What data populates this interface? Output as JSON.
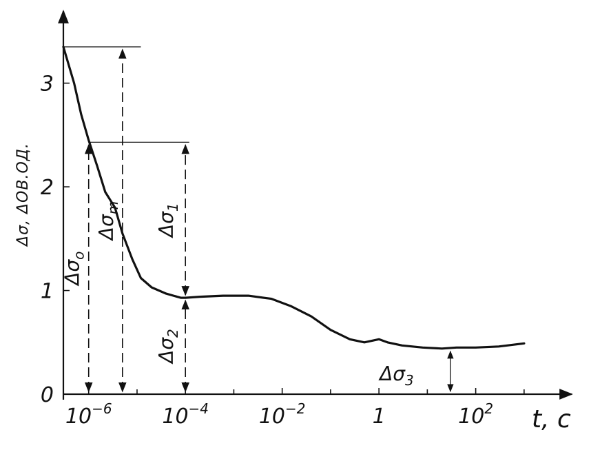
{
  "chart_data": {
    "type": "line",
    "title": "",
    "xlabel": "t, c",
    "ylabel": "Δσ, ΔOB.OД.",
    "x_scale": "log",
    "xlim": [
      3e-07,
      2000
    ],
    "ylim": [
      0,
      3.5
    ],
    "x_ticks": [
      {
        "value": 1e-06,
        "label_base": "10",
        "label_exp": "−6"
      },
      {
        "value": 0.0001,
        "label_base": "10",
        "label_exp": "−4"
      },
      {
        "value": 0.01,
        "label_base": "10",
        "label_exp": "−2"
      },
      {
        "value": 1,
        "label_base": "1",
        "label_exp": ""
      },
      {
        "value": 100,
        "label_base": "10",
        "label_exp": "2"
      }
    ],
    "x_minor_ticks": [
      1e-05,
      0.001,
      0.1,
      10,
      1000
    ],
    "y_ticks": [
      {
        "value": 0,
        "label": "0"
      },
      {
        "value": 1,
        "label": "1"
      },
      {
        "value": 2,
        "label": "2"
      },
      {
        "value": 3,
        "label": "3"
      }
    ],
    "grid": false,
    "legend": "none",
    "series": [
      {
        "x": [
          3e-07,
          5e-07,
          7e-07,
          1e-06,
          1.5e-06,
          2.2e-06,
          3.5e-06,
          5e-06,
          8e-06,
          1.2e-05,
          2e-05,
          4e-05,
          8e-05,
          0.0001,
          0.0002,
          0.0006,
          0.002,
          0.006,
          0.015,
          0.04,
          0.1,
          0.25,
          0.5,
          1,
          1.5,
          3,
          8,
          20,
          40,
          100,
          300,
          1000
        ],
        "y": [
          3.35,
          3.0,
          2.7,
          2.45,
          2.2,
          1.95,
          1.8,
          1.55,
          1.3,
          1.12,
          1.03,
          0.97,
          0.93,
          0.93,
          0.94,
          0.95,
          0.95,
          0.92,
          0.85,
          0.75,
          0.62,
          0.53,
          0.5,
          0.53,
          0.5,
          0.47,
          0.45,
          0.44,
          0.45,
          0.45,
          0.46,
          0.49
        ]
      }
    ],
    "reference_lines": [
      {
        "y": 3.35,
        "x_start": 3e-07,
        "x_end": 1.2e-05
      },
      {
        "y": 2.43,
        "x_start": 1e-06,
        "x_end": 0.00012
      }
    ],
    "annotations": [
      {
        "base": "Δσ",
        "sub": "o",
        "x": 1e-06,
        "y_from": 0,
        "y_to": 2.43
      },
      {
        "base": "Δσ",
        "sub": "m",
        "x": 5e-06,
        "y_from": 0,
        "y_to": 3.35
      },
      {
        "base": "Δσ",
        "sub": "1",
        "x": 0.0001,
        "y_from": 0.93,
        "y_to": 2.43
      },
      {
        "base": "Δσ",
        "sub": "2",
        "x": 0.0001,
        "y_from": 0,
        "y_to": 0.93
      },
      {
        "base": "Δσ",
        "sub": "3",
        "x": 30,
        "y_from": 0,
        "y_to": 0.44
      }
    ]
  }
}
